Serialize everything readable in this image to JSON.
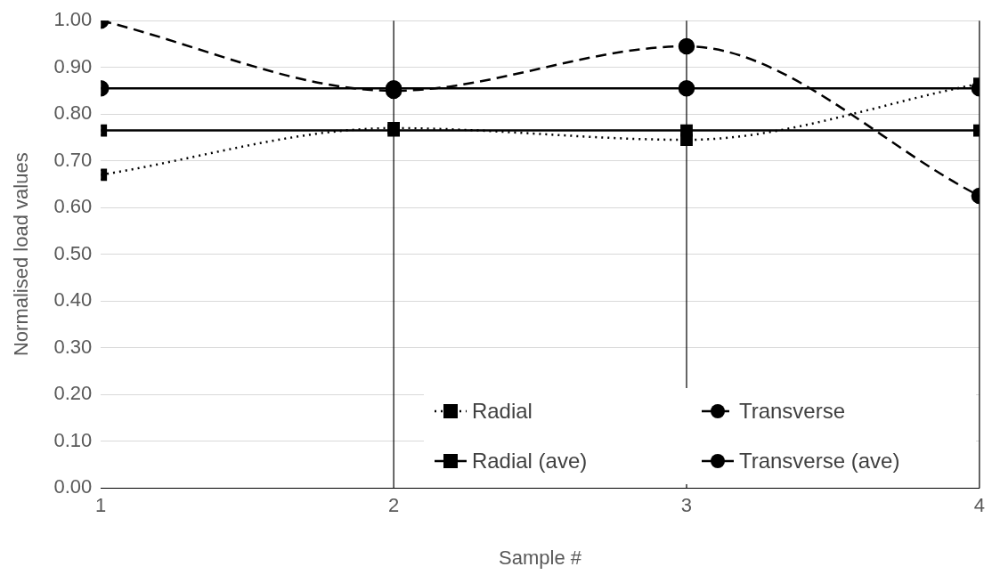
{
  "chart_data": {
    "type": "line",
    "xlabel": "Sample #",
    "ylabel": "Normalised load values",
    "x": [
      1,
      2,
      3,
      4
    ],
    "xlim": [
      1,
      4
    ],
    "xticks": [
      1,
      2,
      3,
      4
    ],
    "ylim": [
      0,
      1
    ],
    "yticks": [
      {
        "value": 0,
        "label": "0.00"
      },
      {
        "value": 0.1,
        "label": "0.10"
      },
      {
        "value": 0.2,
        "label": "0.20"
      },
      {
        "value": 0.3,
        "label": "0.30"
      },
      {
        "value": 0.4,
        "label": "0.40"
      },
      {
        "value": 0.5,
        "label": "0.50"
      },
      {
        "value": 0.6,
        "label": "0.60"
      },
      {
        "value": 0.7,
        "label": "0.70"
      },
      {
        "value": 0.8,
        "label": "0.80"
      },
      {
        "value": 0.9,
        "label": "0.90"
      },
      {
        "value": 1,
        "label": "1.00"
      }
    ],
    "grid": "y",
    "legend": "bottom right",
    "ref_lines": [
      {
        "axis": "x",
        "value": 2,
        "color": "#000000"
      },
      {
        "axis": "x",
        "value": 3,
        "color": "#000000"
      },
      {
        "axis": "x",
        "value": 4,
        "color": "#000000"
      }
    ],
    "series": [
      {
        "name": "Radial",
        "color": "#000000",
        "values": [
          0.67,
          0.77,
          0.745,
          0.865
        ],
        "line_style": "dotted",
        "marker": "square"
      },
      {
        "name": "Transverse",
        "color": "#000000",
        "values": [
          1.0,
          0.85,
          0.945,
          0.625
        ],
        "line_style": "dashed",
        "marker": "circle"
      },
      {
        "name": "Radial (ave)",
        "color": "#000000",
        "values": [
          0.765,
          0.765,
          0.765,
          0.765
        ],
        "line_style": "solid",
        "marker": "square"
      },
      {
        "name": "Transverse (ave)",
        "color": "#000000",
        "values": [
          0.855,
          0.855,
          0.855,
          0.855
        ],
        "line_style": "solid",
        "marker": "circle"
      }
    ]
  }
}
